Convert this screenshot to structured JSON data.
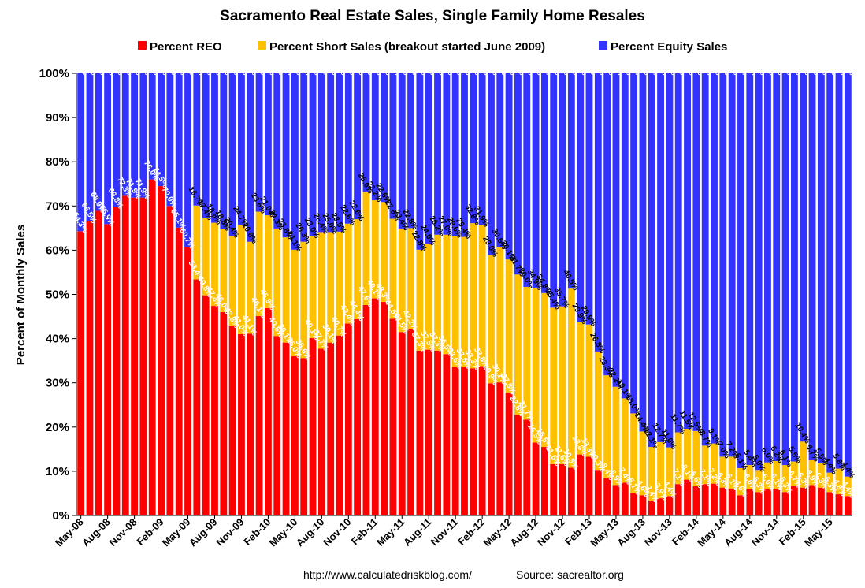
{
  "chart_data": {
    "type": "bar",
    "stacked": true,
    "title": "Sacramento Real Estate Sales, Single Family Home Resales",
    "ylabel": "Percent of Monthly Sales",
    "xlabel": "",
    "ylim": [
      0,
      100
    ],
    "yticks": [
      "0%",
      "10%",
      "20%",
      "30%",
      "40%",
      "50%",
      "60%",
      "70%",
      "80%",
      "90%",
      "100%"
    ],
    "xtick_labels": [
      "May-08",
      "Aug-08",
      "Nov-08",
      "Feb-09",
      "May-09",
      "Aug-09",
      "Nov-09",
      "Feb-10",
      "May-10",
      "Aug-10",
      "Nov-10",
      "Feb-11",
      "May-11",
      "Aug-11",
      "Nov-11",
      "Feb-12",
      "May-12",
      "Aug-12",
      "Nov-12",
      "Feb-13",
      "May-13",
      "Aug-13",
      "Nov-13",
      "Feb-14",
      "May-14",
      "Aug-14",
      "Nov-14",
      "Feb-15",
      "May-15"
    ],
    "categories": [
      "May-08",
      "Jun-08",
      "Jul-08",
      "Aug-08",
      "Sep-08",
      "Oct-08",
      "Nov-08",
      "Dec-08",
      "Jan-09",
      "Feb-09",
      "Mar-09",
      "Apr-09",
      "May-09",
      "Jun-09",
      "Jul-09",
      "Aug-09",
      "Sep-09",
      "Oct-09",
      "Nov-09",
      "Dec-09",
      "Jan-10",
      "Feb-10",
      "Mar-10",
      "Apr-10",
      "May-10",
      "Jun-10",
      "Jul-10",
      "Aug-10",
      "Sep-10",
      "Oct-10",
      "Nov-10",
      "Dec-10",
      "Jan-11",
      "Feb-11",
      "Mar-11",
      "Apr-11",
      "May-11",
      "Jun-11",
      "Jul-11",
      "Aug-11",
      "Sep-11",
      "Oct-11",
      "Nov-11",
      "Dec-11",
      "Jan-12",
      "Feb-12",
      "Mar-12",
      "Apr-12",
      "May-12",
      "Jun-12",
      "Jul-12",
      "Aug-12",
      "Sep-12",
      "Oct-12",
      "Nov-12",
      "Dec-12",
      "Jan-13",
      "Feb-13",
      "Mar-13",
      "Apr-13",
      "May-13",
      "Jun-13",
      "Jul-13",
      "Aug-13",
      "Sep-13",
      "Oct-13",
      "Nov-13",
      "Dec-13",
      "Jan-14",
      "Feb-14",
      "Mar-14",
      "Apr-14",
      "May-14",
      "Jun-14",
      "Jul-14",
      "Aug-14",
      "Sep-14",
      "Oct-14",
      "Nov-14",
      "Dec-14",
      "Jan-15",
      "Feb-15",
      "Mar-15",
      "Apr-15",
      "May-15",
      "Jun-15",
      "Jul-15"
    ],
    "series": [
      {
        "name": "Percent REO",
        "color": "#ff0000",
        "label_color": "#ffffff",
        "values": [
          64.3,
          66.5,
          68.9,
          65.9,
          69.8,
          72.3,
          71.9,
          71.9,
          76.0,
          74.5,
          70.0,
          65.1,
          60.7,
          53.4,
          49.8,
          47.4,
          46.0,
          42.8,
          41.0,
          41.1,
          45.1,
          46.9,
          40.6,
          39.1,
          36.0,
          35.6,
          40.1,
          37.7,
          39.1,
          40.7,
          43.4,
          44.4,
          47.6,
          49.1,
          48.3,
          44.5,
          41.5,
          42.2,
          37.3,
          37.5,
          37.3,
          36.5,
          33.6,
          33.6,
          33.3,
          33.8,
          29.9,
          30.1,
          27.8,
          22.8,
          21.7,
          16.5,
          15.5,
          11.6,
          11.6,
          10.8,
          13.8,
          13.3,
          10.3,
          8.4,
          6.9,
          7.4,
          5.1,
          4.6,
          3.4,
          3.9,
          4.4,
          7.1,
          8.1,
          6.6,
          7.1,
          7.2,
          6.3,
          6.1,
          4.6,
          6.0,
          5.3,
          6.0,
          6.1,
          5.3,
          6.7,
          6.3,
          6.9,
          6.3,
          5.3,
          4.8,
          4.4
        ]
      },
      {
        "name": "Percent Short Sales (breakout started June 2009)",
        "color": "#ffc000",
        "label_color": "#000000",
        "values": [
          0,
          0,
          0,
          0,
          0,
          0,
          0,
          0,
          0,
          0,
          0,
          0,
          0,
          16.7,
          17.4,
          18.8,
          18.8,
          20.4,
          24.7,
          20.8,
          23.6,
          21.0,
          24.3,
          23.8,
          24.1,
          26.3,
          23.0,
          26.4,
          25.0,
          23.5,
          22.6,
          22.6,
          25.6,
          22.2,
          22.6,
          22.6,
          23.4,
          22.8,
          22.8,
          24.0,
          26.2,
          27.0,
          29.6,
          29.4,
          32.8,
          31.9,
          29.0,
          30.5,
          30.1,
          31.7,
          30.0,
          34.9,
          34.8,
          35.4,
          35.7,
          40.5,
          29.9,
          29.9,
          26.8,
          23.3,
          22.2,
          19.1,
          18.0,
          14.4,
          12.1,
          12.7,
          11.0,
          11.7,
          11.5,
          12.5,
          8.7,
          9.1,
          7.0,
          7.2,
          6.1,
          5.4,
          5.0,
          6.0,
          6.2,
          6.1,
          5.5,
          10.4,
          5.7,
          5.5,
          4.4,
          5.8,
          4.4
        ]
      },
      {
        "name": "Percent Equity Sales",
        "color": "#3333ff",
        "label_color": "#ffffff",
        "values": [
          35.7,
          33.5,
          31.1,
          34.1,
          30.2,
          27.7,
          28.1,
          28.1,
          24.0,
          25.5,
          30.0,
          34.9,
          39.3,
          29.9,
          32.8,
          33.8,
          35.2,
          36.8,
          34.3,
          38.1,
          31.3,
          32.1,
          35.1,
          37.1,
          39.9,
          38.1,
          36.9,
          36.0,
          35.9,
          35.8,
          34.0,
          33.0,
          26.8,
          28.7,
          29.1,
          32.9,
          35.1,
          35.0,
          39.9,
          38.5,
          36.5,
          36.5,
          36.8,
          37.0,
          33.9,
          34.3,
          41.1,
          39.4,
          42.1,
          45.5,
          48.3,
          48.6,
          49.7,
          53.0,
          52.7,
          48.7,
          56.3,
          56.9,
          62.9,
          68.3,
          70.9,
          73.5,
          76.9,
          81.0,
          84.5,
          83.4,
          84.6,
          81.2,
          80.4,
          80.9,
          84.2,
          83.7,
          86.7,
          86.7,
          89.3,
          88.6,
          89.7,
          88.0,
          87.7,
          88.6,
          87.8,
          83.3,
          87.4,
          88.2,
          90.3,
          89.4,
          91.2
        ]
      }
    ],
    "legend_position": "top",
    "grid": false
  },
  "footer": {
    "url": "http://www.calculatedriskblog.com/",
    "source": "Source: sacrealtor.org"
  }
}
